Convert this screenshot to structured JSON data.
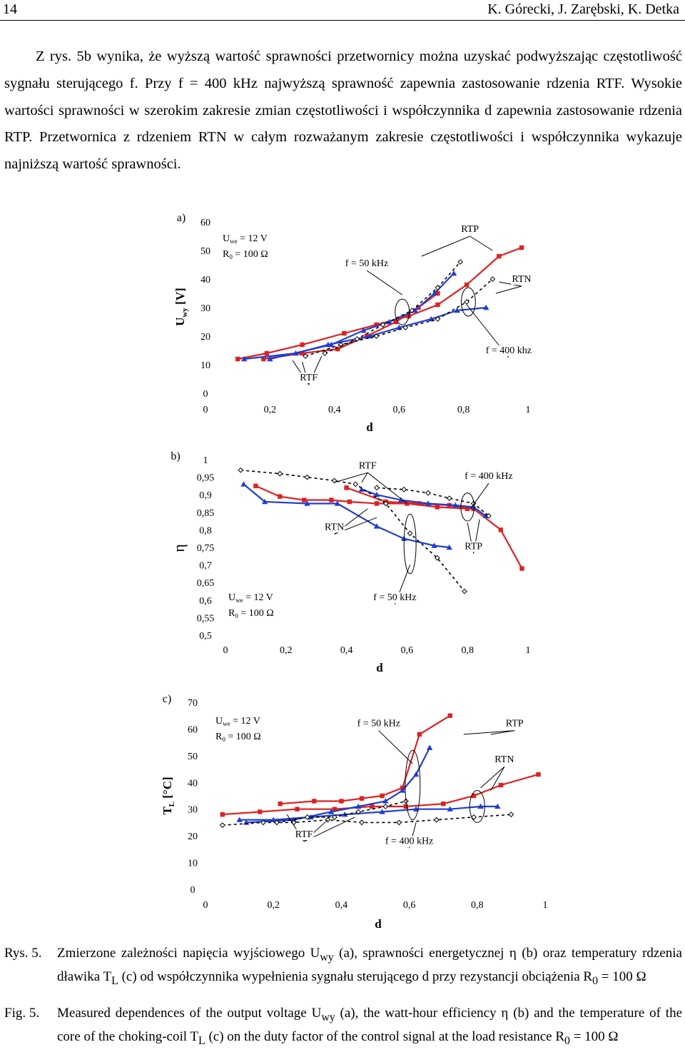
{
  "header": {
    "page_number": "14",
    "authors": "K. Górecki, J. Zarębski, K. Detka"
  },
  "paragraph": "Z rys. 5b wynika, że wyższą wartość sprawności przetwornicy można uzyskać podwyższając częstotliwość sygnału sterującego f. Przy f = 400 kHz najwyższą sprawność zapewnia zastosowanie rdzenia RTF. Wysokie wartości sprawności w szerokim zakresie zmian częstotliwości i współczynnika d zapewnia zastosowanie rdzenia RTP. Przetwornica z rdzeniem RTN w całym rozważanym zakresie częstotliwości i współczynnika wykazuje najniższą wartość sprawności.",
  "chart_data": [
    {
      "type": "line",
      "panel": "a)",
      "xlabel": "d",
      "ylabel": "U wy [V]",
      "ylabel_main": "U",
      "ylabel_sub": "wy",
      "ylabel_unit": "[V]",
      "xlim": [
        0,
        1
      ],
      "ylim": [
        0,
        60
      ],
      "xticks": [
        "0",
        "0,2",
        "0,4",
        "0,6",
        "0,8",
        "1"
      ],
      "yticks": [
        "0",
        "10",
        "20",
        "30",
        "40",
        "50",
        "60"
      ],
      "params": {
        "line1_main": "U",
        "line1_sub": "we",
        "line1_rest": " = 12 V",
        "line2_main": "R",
        "line2_sub": "0",
        "line2_rest": " = 100 Ω"
      },
      "annotations": [
        {
          "text": "RTP",
          "at": [
            0.82,
            56.5
          ],
          "pointers": [
            [
              0.67,
              48
            ],
            [
              0.89,
              50
            ]
          ]
        },
        {
          "text": "RTN",
          "at": [
            0.98,
            39
          ],
          "pointers": [
            [
              0.91,
              39
            ],
            [
              0.9,
              35
            ]
          ]
        },
        {
          "text": "f = 50 kHz",
          "at": [
            0.5,
            44.5
          ],
          "pointers": [
            [
              0.61,
              34.5
            ]
          ]
        },
        {
          "text": "f = 400 khz",
          "at": [
            0.94,
            14
          ],
          "pointers": [
            [
              0.81,
              31
            ]
          ]
        },
        {
          "text": "RTF",
          "at": [
            0.32,
            4.5
          ],
          "pointers": [
            [
              0.27,
              11.5
            ],
            [
              0.36,
              13
            ],
            [
              0.3,
              11
            ]
          ]
        }
      ],
      "ellipses": [
        {
          "cx": 0.61,
          "cy": 28.5,
          "rx": 0.022,
          "ry": 4.5
        },
        {
          "cx": 0.815,
          "cy": 32,
          "rx": 0.022,
          "ry": 5
        }
      ],
      "series": [
        {
          "name": "RTP 400 kHz",
          "color": "#e02020",
          "marker": "square",
          "dash": false,
          "x": [
            0.1,
            0.19,
            0.3,
            0.43,
            0.53,
            0.63,
            0.72,
            0.81,
            0.91,
            0.98
          ],
          "y": [
            12,
            14,
            17,
            21,
            24,
            27,
            31,
            38,
            48,
            51
          ]
        },
        {
          "name": "RTP 50 kHz",
          "color": "#e02020",
          "marker": "square",
          "dash": false,
          "x": [
            0.18,
            0.3,
            0.41,
            0.5,
            0.59,
            0.66,
            0.72
          ],
          "y": [
            12,
            14,
            15.5,
            20,
            25,
            30,
            35
          ]
        },
        {
          "name": "RTN 400 kHz",
          "color": "#1f3fd0",
          "marker": "triangle",
          "dash": false,
          "x": [
            0.12,
            0.28,
            0.38,
            0.51,
            0.6,
            0.7,
            0.78,
            0.87
          ],
          "y": [
            12,
            14,
            17,
            20,
            23,
            26,
            29,
            30
          ]
        },
        {
          "name": "RTN 50 kHz",
          "color": "#1f3fd0",
          "marker": "triangle",
          "dash": false,
          "x": [
            0.2,
            0.39,
            0.49,
            0.57,
            0.65,
            0.71,
            0.77
          ],
          "y": [
            12,
            17,
            22,
            25,
            29,
            35,
            42
          ]
        },
        {
          "name": "RTF 400 kHz",
          "color": "#000000",
          "marker": "diamond",
          "dash": true,
          "x": [
            0.31,
            0.42,
            0.53,
            0.62,
            0.72,
            0.81,
            0.89
          ],
          "y": [
            13,
            17,
            20,
            23,
            26,
            32,
            40
          ]
        },
        {
          "name": "RTF 50 kHz",
          "color": "#000000",
          "marker": "diamond",
          "dash": true,
          "x": [
            0.37,
            0.47,
            0.55,
            0.64,
            0.72,
            0.79
          ],
          "y": [
            14,
            19,
            24,
            29,
            37,
            46
          ]
        }
      ]
    },
    {
      "type": "line",
      "panel": "b)",
      "xlabel": "d",
      "ylabel": "η",
      "xlim": [
        0,
        1
      ],
      "ylim": [
        0.5,
        1
      ],
      "xticks": [
        "0",
        "0,2",
        "0,4",
        "0,6",
        "0,8",
        "1"
      ],
      "yticks": [
        "0,5",
        "0,55",
        "0,6",
        "0,65",
        "0,7",
        "0,75",
        "0,8",
        "0,85",
        "0,9",
        "0,95",
        "1"
      ],
      "params": {
        "line1_main": "U",
        "line1_sub": "we",
        "line1_rest": " = 12 V",
        "line2_main": "R",
        "line2_sub": "0",
        "line2_rest": " = 100 Ω"
      },
      "annotations": [
        {
          "text": "RTF",
          "at": [
            0.47,
            0.975
          ],
          "pointers": [
            [
              0.36,
              0.935
            ],
            [
              0.45,
              0.935
            ],
            [
              0.6,
              0.875
            ]
          ]
        },
        {
          "text": "f = 400 kHz",
          "at": [
            0.87,
            0.945
          ],
          "pointers": [
            [
              0.81,
              0.86
            ]
          ]
        },
        {
          "text": "RTN",
          "at": [
            0.36,
            0.8
          ],
          "pointers": [
            [
              0.47,
              0.86
            ],
            [
              0.5,
              0.835
            ]
          ]
        },
        {
          "text": "RTP",
          "at": [
            0.82,
            0.745
          ],
          "pointers": [
            [
              0.8,
              0.82
            ],
            [
              0.84,
              0.83
            ]
          ]
        },
        {
          "text": "f = 50 kHz",
          "at": [
            0.56,
            0.6
          ],
          "pointers": [
            [
              0.61,
              0.7
            ]
          ]
        }
      ],
      "ellipses": [
        {
          "cx": 0.61,
          "cy": 0.76,
          "rx": 0.02,
          "ry": 0.085
        },
        {
          "cx": 0.8,
          "cy": 0.865,
          "rx": 0.022,
          "ry": 0.04
        }
      ],
      "series": [
        {
          "name": "RTP 400 kHz",
          "color": "#e02020",
          "marker": "square",
          "dash": false,
          "x": [
            0.4,
            0.53,
            0.64,
            0.74,
            0.82,
            0.91,
            0.98
          ],
          "y": [
            0.92,
            0.88,
            0.875,
            0.87,
            0.86,
            0.8,
            0.69
          ]
        },
        {
          "name": "RTP 50 kHz",
          "color": "#e02020",
          "marker": "square",
          "dash": false,
          "x": [
            0.1,
            0.18,
            0.26,
            0.35,
            0.41,
            0.5,
            0.6,
            0.7,
            0.8
          ],
          "y": [
            0.925,
            0.895,
            0.885,
            0.885,
            0.88,
            0.875,
            0.875,
            0.865,
            0.86
          ]
        },
        {
          "name": "RTN 400 kHz",
          "color": "#1f3fd0",
          "marker": "triangle",
          "dash": false,
          "x": [
            0.45,
            0.5,
            0.58,
            0.67,
            0.76,
            0.82,
            0.86
          ],
          "y": [
            0.915,
            0.9,
            0.885,
            0.875,
            0.87,
            0.865,
            0.84
          ]
        },
        {
          "name": "RTN 50 kHz",
          "color": "#1f3fd0",
          "marker": "triangle",
          "dash": false,
          "x": [
            0.06,
            0.13,
            0.27,
            0.37,
            0.5,
            0.59,
            0.69,
            0.74
          ],
          "y": [
            0.93,
            0.88,
            0.875,
            0.875,
            0.81,
            0.775,
            0.755,
            0.75
          ]
        },
        {
          "name": "RTF 400 kHz",
          "color": "#000000",
          "marker": "diamond",
          "dash": true,
          "x": [
            0.5,
            0.59,
            0.67,
            0.74,
            0.82,
            0.87
          ],
          "y": [
            0.92,
            0.915,
            0.905,
            0.89,
            0.875,
            0.84
          ]
        },
        {
          "name": "RTF 50 kHz",
          "color": "#000000",
          "marker": "diamond",
          "dash": true,
          "x": [
            0.05,
            0.18,
            0.27,
            0.36,
            0.43,
            0.53,
            0.61,
            0.7,
            0.79
          ],
          "y": [
            0.97,
            0.96,
            0.95,
            0.94,
            0.93,
            0.875,
            0.79,
            0.72,
            0.625
          ]
        }
      ]
    },
    {
      "type": "line",
      "panel": "c)",
      "xlabel": "d",
      "ylabel": "T L [°C]",
      "ylabel_main": "T",
      "ylabel_sub": "L",
      "ylabel_unit": "[°C]",
      "xlim": [
        0,
        1
      ],
      "ylim": [
        0,
        70
      ],
      "xticks": [
        "0",
        "0,2",
        "0,4",
        "0,6",
        "0,8",
        "1"
      ],
      "yticks": [
        "0",
        "10",
        "20",
        "30",
        "40",
        "50",
        "60",
        "70"
      ],
      "params": {
        "line1_main": "U",
        "line1_sub": "we",
        "line1_rest": " = 12 V",
        "line2_main": "R",
        "line2_sub": "0",
        "line2_rest": " = 100 Ω"
      },
      "annotations": [
        {
          "text": "f = 50 kHz",
          "at": [
            0.51,
            61
          ],
          "pointers": [
            [
              0.61,
              47
            ]
          ]
        },
        {
          "text": "RTP",
          "at": [
            0.91,
            61
          ],
          "pointers": [
            [
              0.76,
              58
            ],
            [
              0.84,
              58
            ]
          ]
        },
        {
          "text": "RTN",
          "at": [
            0.88,
            47.5
          ],
          "pointers": [
            [
              0.81,
              38
            ],
            [
              0.84,
              37
            ]
          ]
        },
        {
          "text": "RTF",
          "at": [
            0.29,
            19.5
          ],
          "pointers": [
            [
              0.24,
              28
            ],
            [
              0.36,
              26
            ],
            [
              0.44,
              27
            ]
          ]
        },
        {
          "text": "f = 400 kHz",
          "at": [
            0.6,
            17
          ],
          "pointers": [
            [
              0.62,
              25
            ]
          ]
        }
      ],
      "ellipses": [
        {
          "cx": 0.61,
          "cy": 39,
          "rx": 0.022,
          "ry": 13
        },
        {
          "cx": 0.8,
          "cy": 31,
          "rx": 0.022,
          "ry": 6
        }
      ],
      "series": [
        {
          "name": "RTP 400 kHz",
          "color": "#e02020",
          "marker": "square",
          "dash": false,
          "x": [
            0.05,
            0.16,
            0.27,
            0.38,
            0.49,
            0.59,
            0.7,
            0.79,
            0.87,
            0.98
          ],
          "y": [
            28,
            29,
            30,
            30,
            31,
            31,
            32,
            35,
            39,
            43
          ]
        },
        {
          "name": "RTP 50 kHz",
          "color": "#e02020",
          "marker": "square",
          "dash": false,
          "x": [
            0.22,
            0.32,
            0.4,
            0.46,
            0.52,
            0.58,
            0.63,
            0.72
          ],
          "y": [
            32,
            33,
            33,
            34,
            35,
            38,
            58,
            65
          ]
        },
        {
          "name": "RTN 400 kHz",
          "color": "#1f3fd0",
          "marker": "triangle",
          "dash": false,
          "x": [
            0.1,
            0.2,
            0.31,
            0.41,
            0.52,
            0.62,
            0.72,
            0.81,
            0.86
          ],
          "y": [
            26,
            26,
            27,
            28,
            29,
            30,
            30,
            31,
            31
          ]
        },
        {
          "name": "RTN 50 kHz",
          "color": "#1f3fd0",
          "marker": "triangle",
          "dash": false,
          "x": [
            0.12,
            0.26,
            0.37,
            0.45,
            0.53,
            0.58,
            0.62,
            0.66
          ],
          "y": [
            25,
            26,
            29,
            31,
            33,
            37,
            43,
            53
          ]
        },
        {
          "name": "RTF 400 kHz",
          "color": "#000000",
          "marker": "diamond",
          "dash": true,
          "x": [
            0.05,
            0.17,
            0.26,
            0.36,
            0.46,
            0.57,
            0.68,
            0.79,
            0.9
          ],
          "y": [
            24,
            25,
            25,
            26,
            25,
            25,
            26,
            27,
            28
          ]
        },
        {
          "name": "RTF 50 kHz",
          "color": "#000000",
          "marker": "diamond",
          "dash": true,
          "x": [
            0.21,
            0.3,
            0.38,
            0.45,
            0.53,
            0.59
          ],
          "y": [
            25,
            27,
            27,
            29,
            31,
            33
          ]
        }
      ]
    }
  ],
  "caption_pl": {
    "label": "Rys. 5.",
    "parts": [
      "Zmierzone zależności napięcia wyjściowego U",
      "wy",
      " (a), sprawności energetycznej η (b) oraz temperatury rdzenia dławika T",
      "L",
      " (c) od współczynnika wypełnienia sygnału sterującego d przy rezystancji obciążenia R",
      "0",
      " = 100 Ω"
    ]
  },
  "caption_en": {
    "label": "Fig. 5.",
    "parts": [
      "Measured dependences of the output voltage U",
      "wy",
      " (a), the watt-hour efficiency η (b) and the temperature of the core of the choking-coil T",
      "L",
      " (c) on the duty factor of the control signal at the load resistance R",
      "0",
      " = 100 Ω"
    ]
  }
}
